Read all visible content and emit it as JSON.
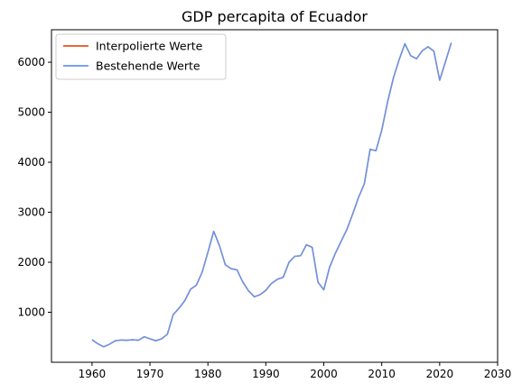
{
  "chart_data": {
    "type": "line",
    "title": "GDP percapita of Ecuador",
    "xlabel": "",
    "ylabel": "",
    "xlim": [
      1953,
      2030
    ],
    "ylim": [
      0,
      6650
    ],
    "xticks": [
      1960,
      1970,
      1980,
      1990,
      2000,
      2010,
      2020,
      2030
    ],
    "yticks": [
      1000,
      2000,
      3000,
      4000,
      5000,
      6000
    ],
    "grid": false,
    "legend_position": "top-left",
    "x": [
      1960,
      1961,
      1962,
      1963,
      1964,
      1965,
      1966,
      1967,
      1968,
      1969,
      1970,
      1971,
      1972,
      1973,
      1974,
      1975,
      1976,
      1977,
      1978,
      1979,
      1980,
      1981,
      1982,
      1983,
      1984,
      1985,
      1986,
      1987,
      1988,
      1989,
      1990,
      1991,
      1992,
      1993,
      1994,
      1995,
      1996,
      1997,
      1998,
      1999,
      2000,
      2001,
      2002,
      2003,
      2004,
      2005,
      2006,
      2007,
      2008,
      2009,
      2010,
      2011,
      2012,
      2013,
      2014,
      2015,
      2016,
      2017,
      2018,
      2019,
      2020,
      2021,
      2022
    ],
    "series": [
      {
        "name": "Interpolierte Werte",
        "color": "#e8511e",
        "values": [
          450,
          370,
          310,
          360,
          430,
          445,
          440,
          450,
          440,
          510,
          470,
          430,
          470,
          560,
          950,
          1080,
          1230,
          1460,
          1540,
          1800,
          2200,
          2620,
          2330,
          1950,
          1870,
          1850,
          1610,
          1430,
          1310,
          1350,
          1440,
          1580,
          1660,
          1700,
          2000,
          2120,
          2130,
          2350,
          2300,
          1600,
          1450,
          1900,
          2180,
          2420,
          2660,
          2970,
          3300,
          3570,
          4260,
          4230,
          4640,
          5200,
          5680,
          6050,
          6370,
          6130,
          6070,
          6230,
          6310,
          6220,
          5640,
          6010,
          6390
        ]
      },
      {
        "name": "Bestehende Werte",
        "color": "#6495ed",
        "values": [
          450,
          370,
          310,
          360,
          430,
          445,
          440,
          450,
          440,
          510,
          470,
          430,
          470,
          560,
          950,
          1080,
          1230,
          1460,
          1540,
          1800,
          2200,
          2620,
          2330,
          1950,
          1870,
          1850,
          1610,
          1430,
          1310,
          1350,
          1440,
          1580,
          1660,
          1700,
          2000,
          2120,
          2130,
          2350,
          2300,
          1600,
          1450,
          1900,
          2180,
          2420,
          2660,
          2970,
          3300,
          3570,
          4260,
          4230,
          4640,
          5200,
          5680,
          6050,
          6370,
          6130,
          6070,
          6230,
          6310,
          6220,
          5640,
          6010,
          6390
        ]
      }
    ]
  }
}
